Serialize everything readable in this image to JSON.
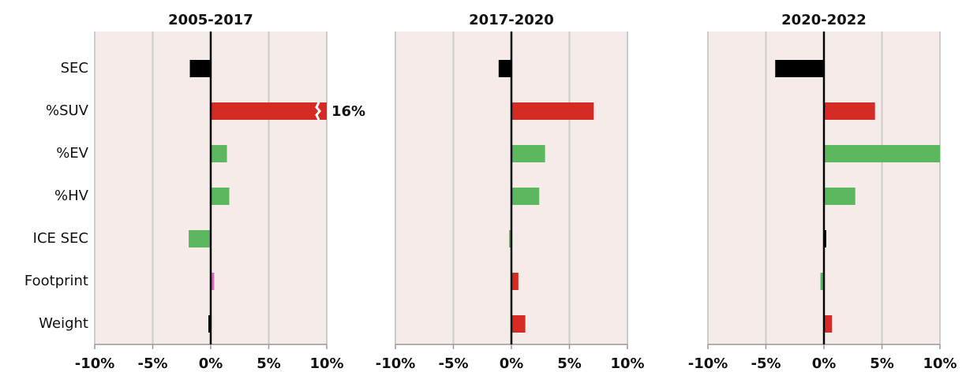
{
  "chart_data": [
    {
      "type": "bar",
      "title": "2005-2017",
      "categories": [
        "SEC",
        "%SUV",
        "%EV",
        "%HV",
        "ICE SEC",
        "Footprint",
        "Weight"
      ],
      "values": [
        -1.8,
        16,
        1.4,
        1.6,
        -1.9,
        0.3,
        -0.2
      ],
      "value_labels": [
        null,
        "16%",
        null,
        null,
        null,
        null,
        null
      ],
      "colors": [
        "#000000",
        "#d62a24",
        "#5cb85f",
        "#5cb85f",
        "#5cb85f",
        "#d46bb5",
        "#000000"
      ],
      "xlim": [
        -10,
        10
      ],
      "xticks": [
        {
          "value": -10,
          "label": "-10%"
        },
        {
          "value": -5,
          "label": "-5%"
        },
        {
          "value": 0,
          "label": "0%"
        },
        {
          "value": 5,
          "label": "5%"
        },
        {
          "value": 10,
          "label": "10%"
        }
      ],
      "grid": true
    },
    {
      "type": "bar",
      "title": "2017-2020",
      "values": [
        -1.1,
        7.1,
        2.9,
        2.4,
        -0.2,
        0.6,
        1.2
      ],
      "colors": [
        "#000000",
        "#d62a24",
        "#5cb85f",
        "#5cb85f",
        "#5cb85f",
        "#d62a24",
        "#d62a24"
      ],
      "xlim": [
        -10,
        10
      ],
      "xticks": [
        {
          "value": -10,
          "label": "-10%"
        },
        {
          "value": -5,
          "label": "-5%"
        },
        {
          "value": 0,
          "label": "0%"
        },
        {
          "value": 5,
          "label": "5%"
        },
        {
          "value": 10,
          "label": "10%"
        }
      ],
      "grid": true
    },
    {
      "type": "bar",
      "title": "2020-2022",
      "values": [
        -4.2,
        4.4,
        10,
        2.7,
        0.2,
        -0.3,
        0.7
      ],
      "colors": [
        "#000000",
        "#d62a24",
        "#5cb85f",
        "#5cb85f",
        "#000000",
        "#5cb85f",
        "#d62a24"
      ],
      "xlim": [
        -10,
        10
      ],
      "xticks": [
        {
          "value": -10,
          "label": "-10%"
        },
        {
          "value": -5,
          "label": "-5%"
        },
        {
          "value": 0,
          "label": "0%"
        },
        {
          "value": 5,
          "label": "5%"
        },
        {
          "value": 10,
          "label": "10%"
        }
      ],
      "grid": true
    }
  ]
}
